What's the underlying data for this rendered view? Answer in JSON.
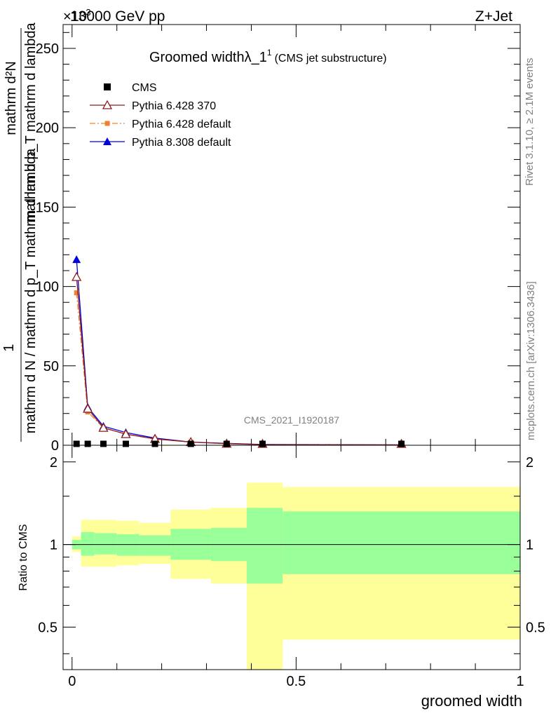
{
  "header": {
    "left": "13000 GeV pp",
    "right": "Z+Jet",
    "multiplier": "×10",
    "multiplier_exp": "-3"
  },
  "side_text": {
    "rivet": "Rivet 3.1.10, ≥ 2.1M events",
    "mcplots": "mcplots.cern.ch [arXiv:1306.3436]"
  },
  "watermark": "CMS_2021_I1920187",
  "chart_data": [
    {
      "type": "line",
      "panel": "main",
      "title": "Groomed widthλ_1",
      "title_sup": "1",
      "title_note": "(CMS jet substructure)",
      "ylabel_top": "1",
      "ylabel_bottom": "mathrm d N / mathrm d p_T mathrm d lambda",
      "ylabel_numerator": "mathrm d²N",
      "ylabel_denominator": "mathrm d p_T mathrm d lambda",
      "xlim": [
        -0.02,
        1.0
      ],
      "ylim": [
        0,
        265
      ],
      "yticks": [
        0,
        50,
        100,
        150,
        200,
        250
      ],
      "legend_position": "top-left",
      "series": [
        {
          "name": "CMS",
          "color": "#000000",
          "marker": "square",
          "x": [
            0.01,
            0.035,
            0.07,
            0.12,
            0.185,
            0.265,
            0.345,
            0.425,
            0.735
          ],
          "y": [
            0.3,
            0.3,
            0.3,
            0.3,
            0.2,
            0.1,
            0.05,
            0.02,
            0.01
          ]
        },
        {
          "name": "Pythia 6.428 370",
          "color": "#8b1a1a",
          "marker": "open-triangle",
          "x": [
            0.01,
            0.035,
            0.07,
            0.12,
            0.185,
            0.265,
            0.345,
            0.425,
            0.735
          ],
          "y": [
            106,
            23,
            11,
            7,
            4,
            2,
            1,
            0.4,
            0.2
          ]
        },
        {
          "name": "Pythia 6.428 default",
          "color": "#f08030",
          "marker": "square",
          "x": [
            0.01,
            0.035,
            0.07,
            0.12,
            0.185,
            0.265,
            0.345,
            0.425,
            0.735
          ],
          "y": [
            96,
            21,
            11,
            7,
            4,
            2,
            1,
            0.4,
            0.2
          ]
        },
        {
          "name": "Pythia 8.308 default",
          "color": "#0000e0",
          "marker": "filled-triangle",
          "x": [
            0.01,
            0.035,
            0.07,
            0.12,
            0.185,
            0.265,
            0.345,
            0.425,
            0.735
          ],
          "y": [
            117,
            24,
            12,
            8,
            4.5,
            2,
            1.2,
            0.5,
            0.2
          ]
        }
      ]
    },
    {
      "type": "area",
      "panel": "ratio",
      "ylabel": "Ratio to CMS",
      "xlabel": "groomed width",
      "xlim": [
        -0.02,
        1.0
      ],
      "ylim": [
        0.35,
        2.3
      ],
      "yticks": [
        0.5,
        1,
        2
      ],
      "ytick_labels": [
        "0.5",
        "1",
        "2"
      ],
      "xticks": [
        0,
        0.5,
        1
      ],
      "xtick_labels": [
        "0",
        "0.5",
        "1"
      ],
      "bins": [
        {
          "lo": 0.0,
          "hi": 0.02,
          "y_lo": 0.94,
          "y_hi": 1.07,
          "g_lo": 0.96,
          "g_hi": 1.04
        },
        {
          "lo": 0.02,
          "hi": 0.05,
          "y_lo": 0.83,
          "y_hi": 1.23,
          "g_lo": 0.91,
          "g_hi": 1.11
        },
        {
          "lo": 0.05,
          "hi": 0.1,
          "y_lo": 0.83,
          "y_hi": 1.23,
          "g_lo": 0.92,
          "g_hi": 1.1
        },
        {
          "lo": 0.1,
          "hi": 0.15,
          "y_lo": 0.84,
          "y_hi": 1.22,
          "g_lo": 0.91,
          "g_hi": 1.09
        },
        {
          "lo": 0.15,
          "hi": 0.22,
          "y_lo": 0.85,
          "y_hi": 1.2,
          "g_lo": 0.91,
          "g_hi": 1.08
        },
        {
          "lo": 0.22,
          "hi": 0.31,
          "y_lo": 0.75,
          "y_hi": 1.34,
          "g_lo": 0.88,
          "g_hi": 1.14
        },
        {
          "lo": 0.31,
          "hi": 0.39,
          "y_lo": 0.72,
          "y_hi": 1.36,
          "g_lo": 0.87,
          "g_hi": 1.15
        },
        {
          "lo": 0.39,
          "hi": 0.47,
          "y_lo": 0.3,
          "y_hi": 1.68,
          "g_lo": 0.72,
          "g_hi": 1.36
        },
        {
          "lo": 0.47,
          "hi": 1.0,
          "y_lo": 0.45,
          "y_hi": 1.62,
          "g_lo": 0.78,
          "g_hi": 1.32
        }
      ],
      "band_colors": {
        "outer": "#ffff99",
        "inner": "#99ff99"
      },
      "reference_line": 1
    }
  ]
}
